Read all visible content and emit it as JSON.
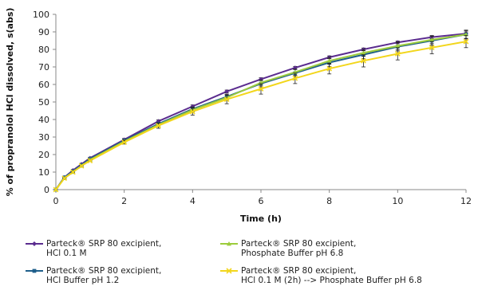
{
  "chart_data": {
    "type": "line",
    "xlabel": "Time (h)",
    "ylabel": "% of propranolol HCl dissolved, s(abs)",
    "xlim": [
      0,
      12
    ],
    "ylim": [
      0,
      100
    ],
    "xticks": [
      0,
      2,
      4,
      6,
      8,
      10,
      12
    ],
    "yticks": [
      0,
      10,
      20,
      30,
      40,
      50,
      60,
      70,
      80,
      90,
      100
    ],
    "grid": false,
    "legend_position": "bottom",
    "x": [
      0,
      0.25,
      0.5,
      0.75,
      1,
      2,
      3,
      4,
      5,
      6,
      7,
      8,
      9,
      10,
      11,
      12
    ],
    "series": [
      {
        "name_line1": "Parteck® SRP 80 excipient,",
        "name_line2": "HCl 0.1 M",
        "color": "#5b2c8f",
        "marker": "diamond",
        "values": [
          0,
          7,
          11,
          14.5,
          18,
          28.5,
          39,
          47.5,
          56,
          63,
          69.5,
          75.5,
          80,
          84,
          87,
          89
        ],
        "error": [
          0,
          0.5,
          0.5,
          0.5,
          0.5,
          0.7,
          0.8,
          0.8,
          0.8,
          0.8,
          0.8,
          0.8,
          0.8,
          0.8,
          0.9,
          1.0
        ]
      },
      {
        "name_line1": "Parteck® SRP 80 excipient,",
        "name_line2": "HCl Buffer pH 1.2",
        "color": "#1f5f8b",
        "marker": "square",
        "values": [
          0,
          7,
          10.5,
          14,
          17.5,
          28,
          37.5,
          46,
          53,
          60.5,
          66.5,
          72.5,
          77,
          81.5,
          85,
          88.5
        ],
        "error": [
          0,
          0.5,
          0.5,
          0.5,
          0.5,
          0.8,
          1.0,
          1.2,
          1.5,
          1.8,
          2.0,
          2.2,
          2.3,
          2.4,
          2.5,
          2.5
        ]
      },
      {
        "name_line1": "Parteck® SRP 80 excipient,",
        "name_line2": "Phosphate Buffer pH 6.8",
        "color": "#9ccc3c",
        "marker": "triangle",
        "values": [
          0,
          6.5,
          10,
          13.5,
          17,
          27.5,
          37,
          45.5,
          52.5,
          61,
          67,
          73.5,
          78,
          82,
          85.5,
          88.5
        ],
        "error": [
          0,
          0.5,
          0.5,
          0.5,
          0.5,
          0.8,
          1.0,
          1.2,
          1.5,
          1.5,
          1.8,
          2.0,
          2.0,
          2.2,
          2.2,
          2.2
        ]
      },
      {
        "name_line1": "Parteck® SRP 80 excipient,",
        "name_line2": "HCl 0.1 M (2h) --> Phosphate Buffer pH 6.8",
        "color": "#f2d61c",
        "marker": "x",
        "values": [
          0,
          6.5,
          10,
          13.5,
          16.5,
          27,
          36.5,
          44.5,
          51.5,
          57.5,
          63.5,
          69,
          73.5,
          77.5,
          81,
          84.5
        ],
        "error": [
          0,
          0.5,
          0.5,
          0.5,
          0.5,
          1.0,
          1.5,
          2.0,
          2.5,
          3.0,
          3.0,
          3.0,
          3.5,
          3.5,
          3.5,
          3.5
        ]
      }
    ]
  }
}
